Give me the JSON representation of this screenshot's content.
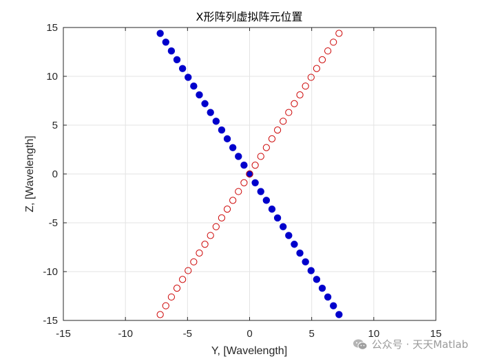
{
  "chart_data": {
    "type": "scatter",
    "title": "X形阵列虚拟阵元位置",
    "xlabel": "Y, [Wavelength]",
    "ylabel": "Z, [Wavelength]",
    "xlim": [
      -15,
      15
    ],
    "ylim": [
      -15,
      15
    ],
    "xticks": [
      -15,
      -10,
      -5,
      0,
      5,
      10,
      15
    ],
    "yticks": [
      -15,
      -10,
      -5,
      0,
      5,
      10,
      15
    ],
    "grid": true,
    "series": [
      {
        "marker": "filled-circle",
        "color": "#0000cc",
        "x": [
          -7.2,
          -6.75,
          -6.3,
          -5.85,
          -5.4,
          -4.95,
          -4.5,
          -4.05,
          -3.6,
          -3.15,
          -2.7,
          -2.25,
          -1.8,
          -1.35,
          -0.9,
          -0.45,
          0.0,
          0.45,
          0.9,
          1.35,
          1.8,
          2.25,
          2.7,
          3.15,
          3.6,
          4.05,
          4.5,
          4.95,
          5.4,
          5.85,
          6.3,
          6.75,
          7.2
        ],
        "y": [
          14.4,
          13.5,
          12.6,
          11.7,
          10.8,
          9.9,
          9.0,
          8.1,
          7.2,
          6.3,
          5.4,
          4.5,
          3.6,
          2.7,
          1.8,
          0.9,
          0.0,
          -0.9,
          -1.8,
          -2.7,
          -3.6,
          -4.5,
          -5.4,
          -6.3,
          -7.2,
          -8.1,
          -9.0,
          -9.9,
          -10.8,
          -11.7,
          -12.6,
          -13.5,
          -14.4
        ]
      },
      {
        "marker": "open-circle",
        "color": "#cc0000",
        "x": [
          -7.2,
          -6.75,
          -6.3,
          -5.85,
          -5.4,
          -4.95,
          -4.5,
          -4.05,
          -3.6,
          -3.15,
          -2.7,
          -2.25,
          -1.8,
          -1.35,
          -0.9,
          -0.45,
          0.0,
          0.45,
          0.9,
          1.35,
          1.8,
          2.25,
          2.7,
          3.15,
          3.6,
          4.05,
          4.5,
          4.95,
          5.4,
          5.85,
          6.3,
          6.75,
          7.2
        ],
        "y": [
          -14.4,
          -13.5,
          -12.6,
          -11.7,
          -10.8,
          -9.9,
          -9.0,
          -8.1,
          -7.2,
          -6.3,
          -5.4,
          -4.5,
          -3.6,
          -2.7,
          -1.8,
          -0.9,
          0.0,
          0.9,
          1.8,
          2.7,
          3.6,
          4.5,
          5.4,
          6.3,
          7.2,
          8.1,
          9.0,
          9.9,
          10.8,
          11.7,
          12.6,
          13.5,
          14.4
        ]
      }
    ]
  },
  "watermark": {
    "text": "公众号 · 天天Matlab",
    "icon": "wechat-icon"
  }
}
